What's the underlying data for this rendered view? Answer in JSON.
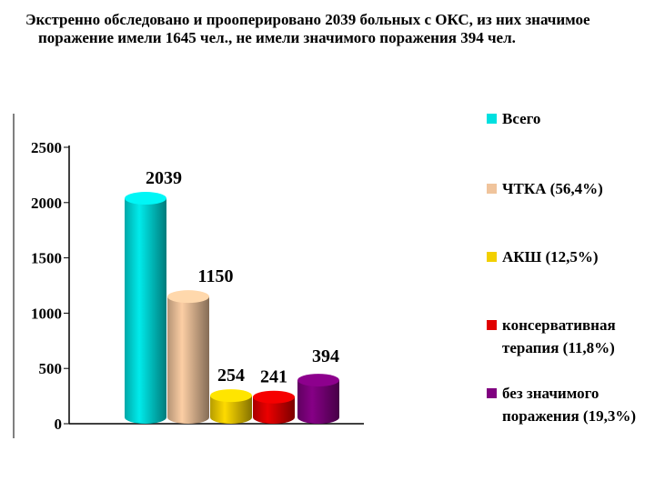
{
  "chart_data": {
    "type": "bar",
    "title": "Экстренно обследовано и прооперировано 2039 больных с ОКС, из них значимое поражение имели 1645 чел., не имели значимого поражения  394 чел.",
    "categories": [
      null
    ],
    "series": [
      {
        "name": "Всего",
        "color": "#00e0e0",
        "values": [
          2039
        ]
      },
      {
        "name": "ЧТКА (56,4%)",
        "color": "#f0c49c",
        "values": [
          1150
        ]
      },
      {
        "name": "АКШ (12,5%)",
        "color": "#f2d000",
        "values": [
          254
        ]
      },
      {
        "name": "консервативная терапия (11,8%)",
        "color": "#e00000",
        "values": [
          241
        ]
      },
      {
        "name": "без значимого поражения (19,3%)",
        "color": "#800080",
        "values": [
          394
        ]
      }
    ],
    "ylim": [
      0,
      2500
    ],
    "yticks": [
      0,
      500,
      1000,
      1500,
      2000,
      2500
    ]
  }
}
